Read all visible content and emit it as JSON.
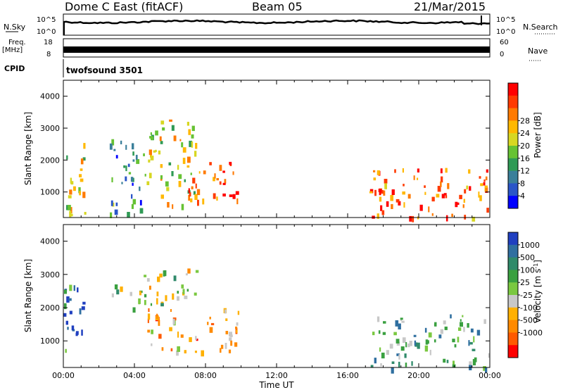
{
  "header": {
    "station": "Dome C East (fitACF)",
    "beam": "Beam 05",
    "date": "21/Mar/2015"
  },
  "top_panels": {
    "nsky_label": "N.Sky",
    "nsky_hi": "10^5",
    "nsky_lo": "10^0",
    "nsearch_label": "N.Search",
    "nsearch_hi": "10^5",
    "nsearch_lo": "10^0",
    "freq_label": "Freq.",
    "freq_unit": "[MHz]",
    "freq_hi": "18",
    "freq_lo": "8",
    "nave_label": "Nave",
    "nave_hi": "60",
    "nave_lo": "0",
    "cpid_label": "CPID",
    "cpid_value": "twofsound 3501"
  },
  "chart_data": [
    {
      "type": "heatmap",
      "panel": "power",
      "ylabel": "Slant Range [km]",
      "ylim": [
        200,
        4500
      ],
      "yticks": [
        "1000",
        "2000",
        "3000",
        "4000"
      ],
      "colorbar_label": "Power [dB]",
      "colorbar_ticks": [
        "4",
        "8",
        "12",
        "16",
        "20",
        "24",
        "28"
      ],
      "colorbar_colors": [
        "#0000ff",
        "#2a55c8",
        "#3a7f9a",
        "#2f9a55",
        "#66c233",
        "#d7d722",
        "#ffb800",
        "#ff7a00",
        "#ff3a00",
        "#ff0000"
      ],
      "regions": [
        {
          "t": [
            0.0,
            1.2
          ],
          "r": [
            300,
            2700
          ],
          "level": 0.55
        },
        {
          "t": [
            2.5,
            4.5
          ],
          "r": [
            300,
            2700
          ],
          "level": 0.3
        },
        {
          "t": [
            4.5,
            7.5
          ],
          "r": [
            600,
            3300
          ],
          "level": 0.55
        },
        {
          "t": [
            7.0,
            10.0
          ],
          "r": [
            700,
            2000
          ],
          "level": 0.9
        },
        {
          "t": [
            17.2,
            24.0
          ],
          "r": [
            200,
            1800
          ],
          "level": 0.8
        }
      ]
    },
    {
      "type": "heatmap",
      "panel": "velocity",
      "ylabel": "Slant Range [km]",
      "ylim": [
        200,
        4500
      ],
      "yticks": [
        "1000",
        "2000",
        "3000",
        "4000"
      ],
      "xlabel": "Time UT",
      "xticks": [
        "00:00",
        "04:00",
        "08:00",
        "12:00",
        "16:00",
        "20:00",
        "00:00"
      ],
      "colorbar_label": "Velocity [m s^-1]",
      "colorbar_ticks": [
        "1000",
        "500",
        "100",
        "25",
        "-25",
        "-100",
        "-500",
        "-1000"
      ],
      "colorbar_colors": [
        "#2040c0",
        "#2f6fa0",
        "#2f8a6a",
        "#3aa040",
        "#7ac840",
        "#c8c8c8",
        "#ffb000",
        "#ff8a00",
        "#ff5a00",
        "#ff0000"
      ],
      "regions": [
        {
          "t": [
            0.0,
            1.2
          ],
          "r": [
            300,
            2700
          ],
          "level": 0.2
        },
        {
          "t": [
            2.5,
            4.5
          ],
          "r": [
            2000,
            2700
          ],
          "level": 0.5
        },
        {
          "t": [
            4.5,
            7.5
          ],
          "r": [
            2000,
            3300
          ],
          "level": 0.5
        },
        {
          "t": [
            4.5,
            10.0
          ],
          "r": [
            700,
            2000
          ],
          "level": 0.7
        },
        {
          "t": [
            17.2,
            24.0
          ],
          "r": [
            200,
            1800
          ],
          "level": 0.35
        }
      ]
    }
  ]
}
